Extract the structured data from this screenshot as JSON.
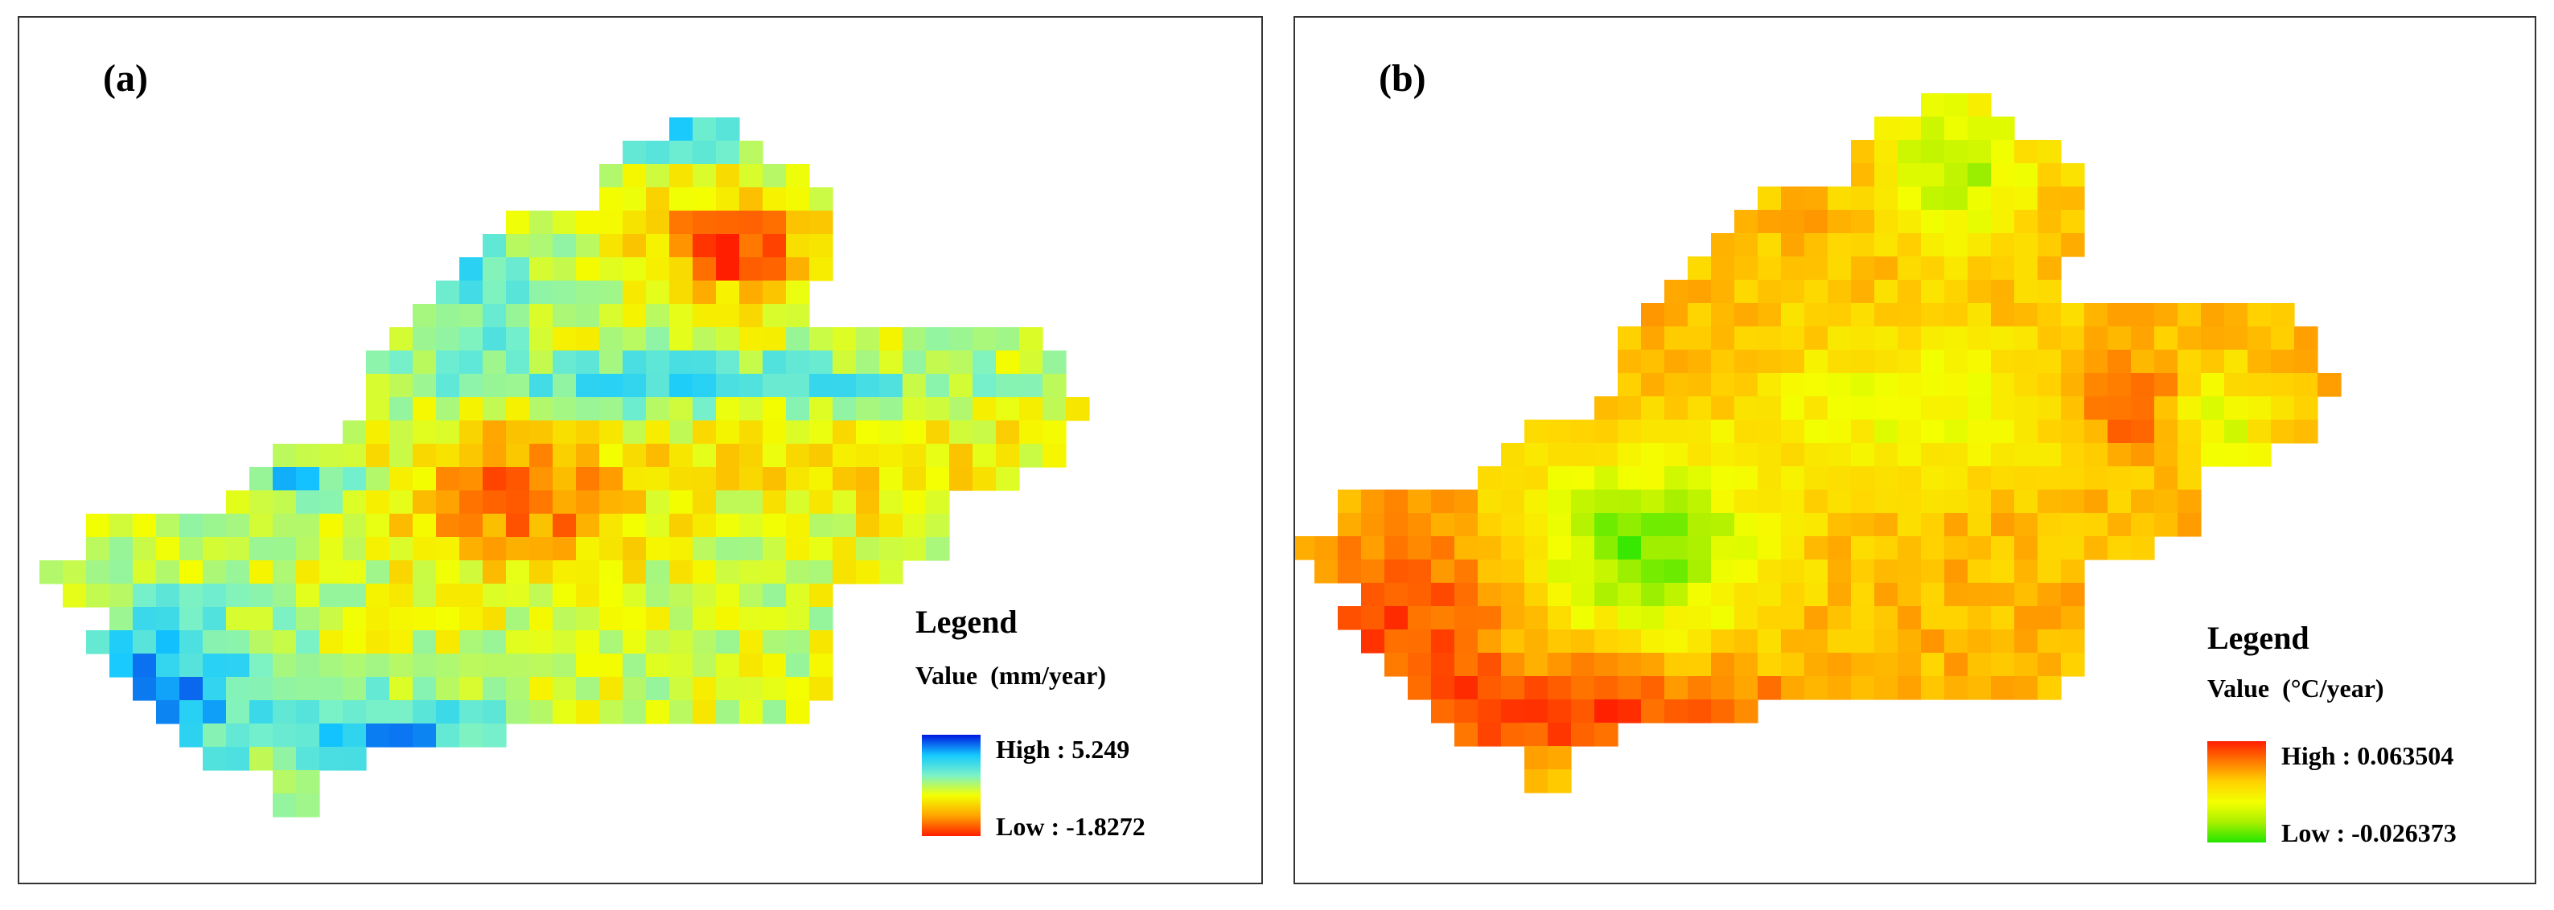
{
  "panels": [
    {
      "label": "(a)",
      "legend": {
        "title": "Legend",
        "value_label": "Value  (mm/year)",
        "high": "High : 5.249",
        "low": "Low : -1.8272",
        "high_value": 5.249,
        "low_value": -1.8272,
        "ramp": [
          "#0018e0",
          "#14c8ff",
          "#7af2c8",
          "#f4ff00",
          "#ffa400",
          "#ff1e00"
        ]
      }
    },
    {
      "label": "(b)",
      "legend": {
        "title": "Legend",
        "value_label": "Value  (°C/year)",
        "high": "High : 0.063504",
        "low": "Low : -0.026373",
        "high_value": 0.063504,
        "low_value": -0.026373,
        "ramp": [
          "#ff1e00",
          "#ff7a00",
          "#ffd200",
          "#f4ff00",
          "#aaf000",
          "#22e600"
        ]
      }
    }
  ]
}
